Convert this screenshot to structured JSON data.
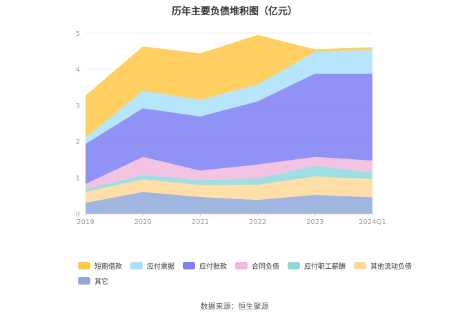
{
  "chart_data": {
    "type": "area",
    "stacked": true,
    "title": "历年主要负债堆积图（亿元）",
    "categories": [
      "2019",
      "2020",
      "2021",
      "2022",
      "2023",
      "2024Q1"
    ],
    "ylim": [
      0,
      5
    ],
    "yticks": [
      0,
      1,
      2,
      3,
      4,
      5
    ],
    "xlabel": "",
    "ylabel": "",
    "grid": true,
    "legend_position": "bottom",
    "series": [
      {
        "name": "其它",
        "color": "#8fa8da",
        "values": [
          0.3,
          0.6,
          0.46,
          0.38,
          0.52,
          0.45
        ]
      },
      {
        "name": "其他流动负债",
        "color": "#ffd899",
        "values": [
          0.3,
          0.35,
          0.33,
          0.42,
          0.51,
          0.51
        ]
      },
      {
        "name": "应付职工薪酬",
        "color": "#8dd9dc",
        "values": [
          0.08,
          0.12,
          0.14,
          0.17,
          0.3,
          0.17
        ]
      },
      {
        "name": "合同负债",
        "color": "#f0b8dd",
        "values": [
          0.14,
          0.5,
          0.26,
          0.39,
          0.24,
          0.34
        ]
      },
      {
        "name": "应付账款",
        "color": "#7e7ff5",
        "values": [
          1.11,
          1.35,
          1.5,
          1.75,
          2.31,
          2.41
        ]
      },
      {
        "name": "应付票据",
        "color": "#a9e1fb",
        "values": [
          0.17,
          0.48,
          0.46,
          0.47,
          0.6,
          0.66
        ]
      },
      {
        "name": "短期借款",
        "color": "#ffc845",
        "values": [
          1.17,
          1.23,
          1.29,
          1.37,
          0.07,
          0.07
        ]
      }
    ]
  },
  "legend_order": [
    6,
    5,
    4,
    3,
    2,
    1,
    0
  ],
  "source": "数据来源：恒生聚源"
}
